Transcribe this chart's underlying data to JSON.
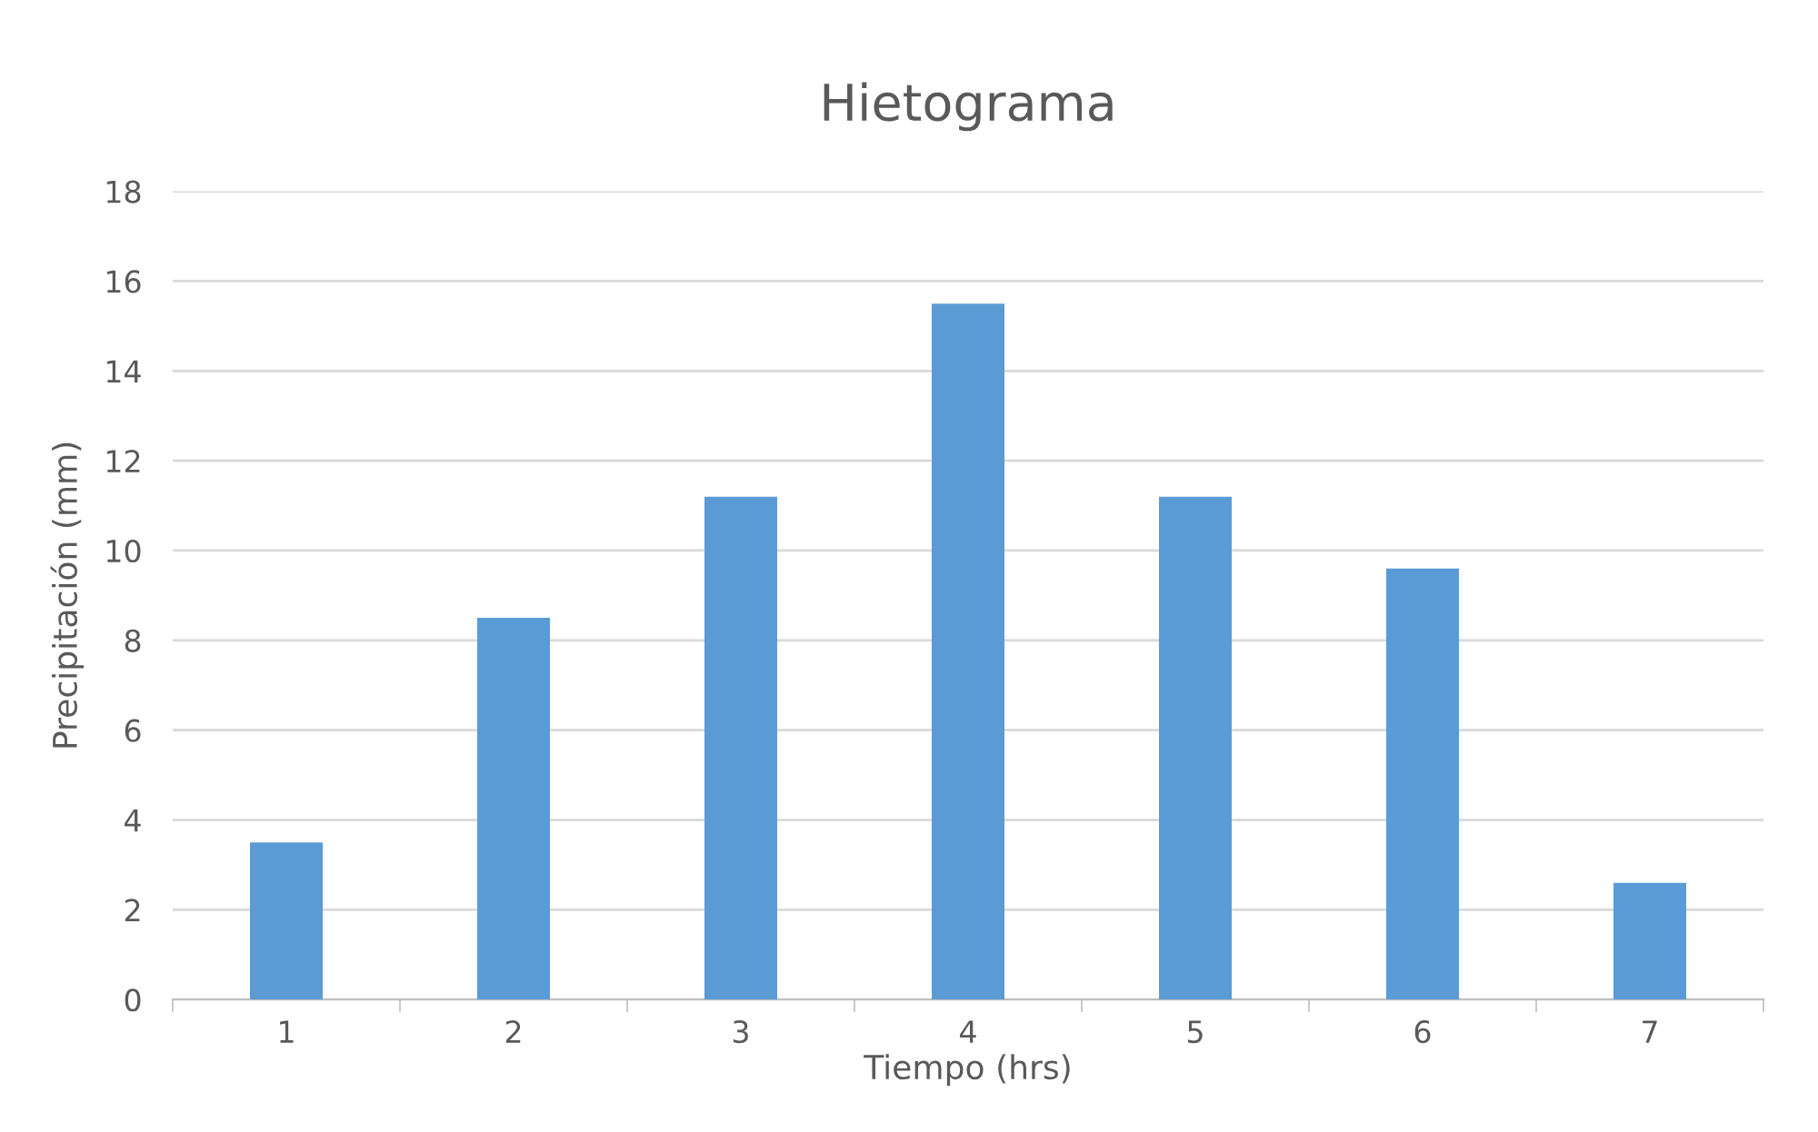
{
  "chart_data": {
    "type": "bar",
    "title": "Hietograma",
    "xlabel": "Tiempo (hrs)",
    "ylabel": "Precipitación (mm)",
    "categories": [
      "1",
      "2",
      "3",
      "4",
      "5",
      "6",
      "7"
    ],
    "values": [
      3.5,
      8.5,
      11.2,
      15.5,
      11.2,
      9.6,
      2.6
    ],
    "color": "#5b9bd5",
    "ylim": [
      0,
      18
    ],
    "yticks": [
      0,
      2,
      4,
      6,
      8,
      10,
      12,
      14,
      16,
      18
    ],
    "grid": "y",
    "legend": false
  }
}
